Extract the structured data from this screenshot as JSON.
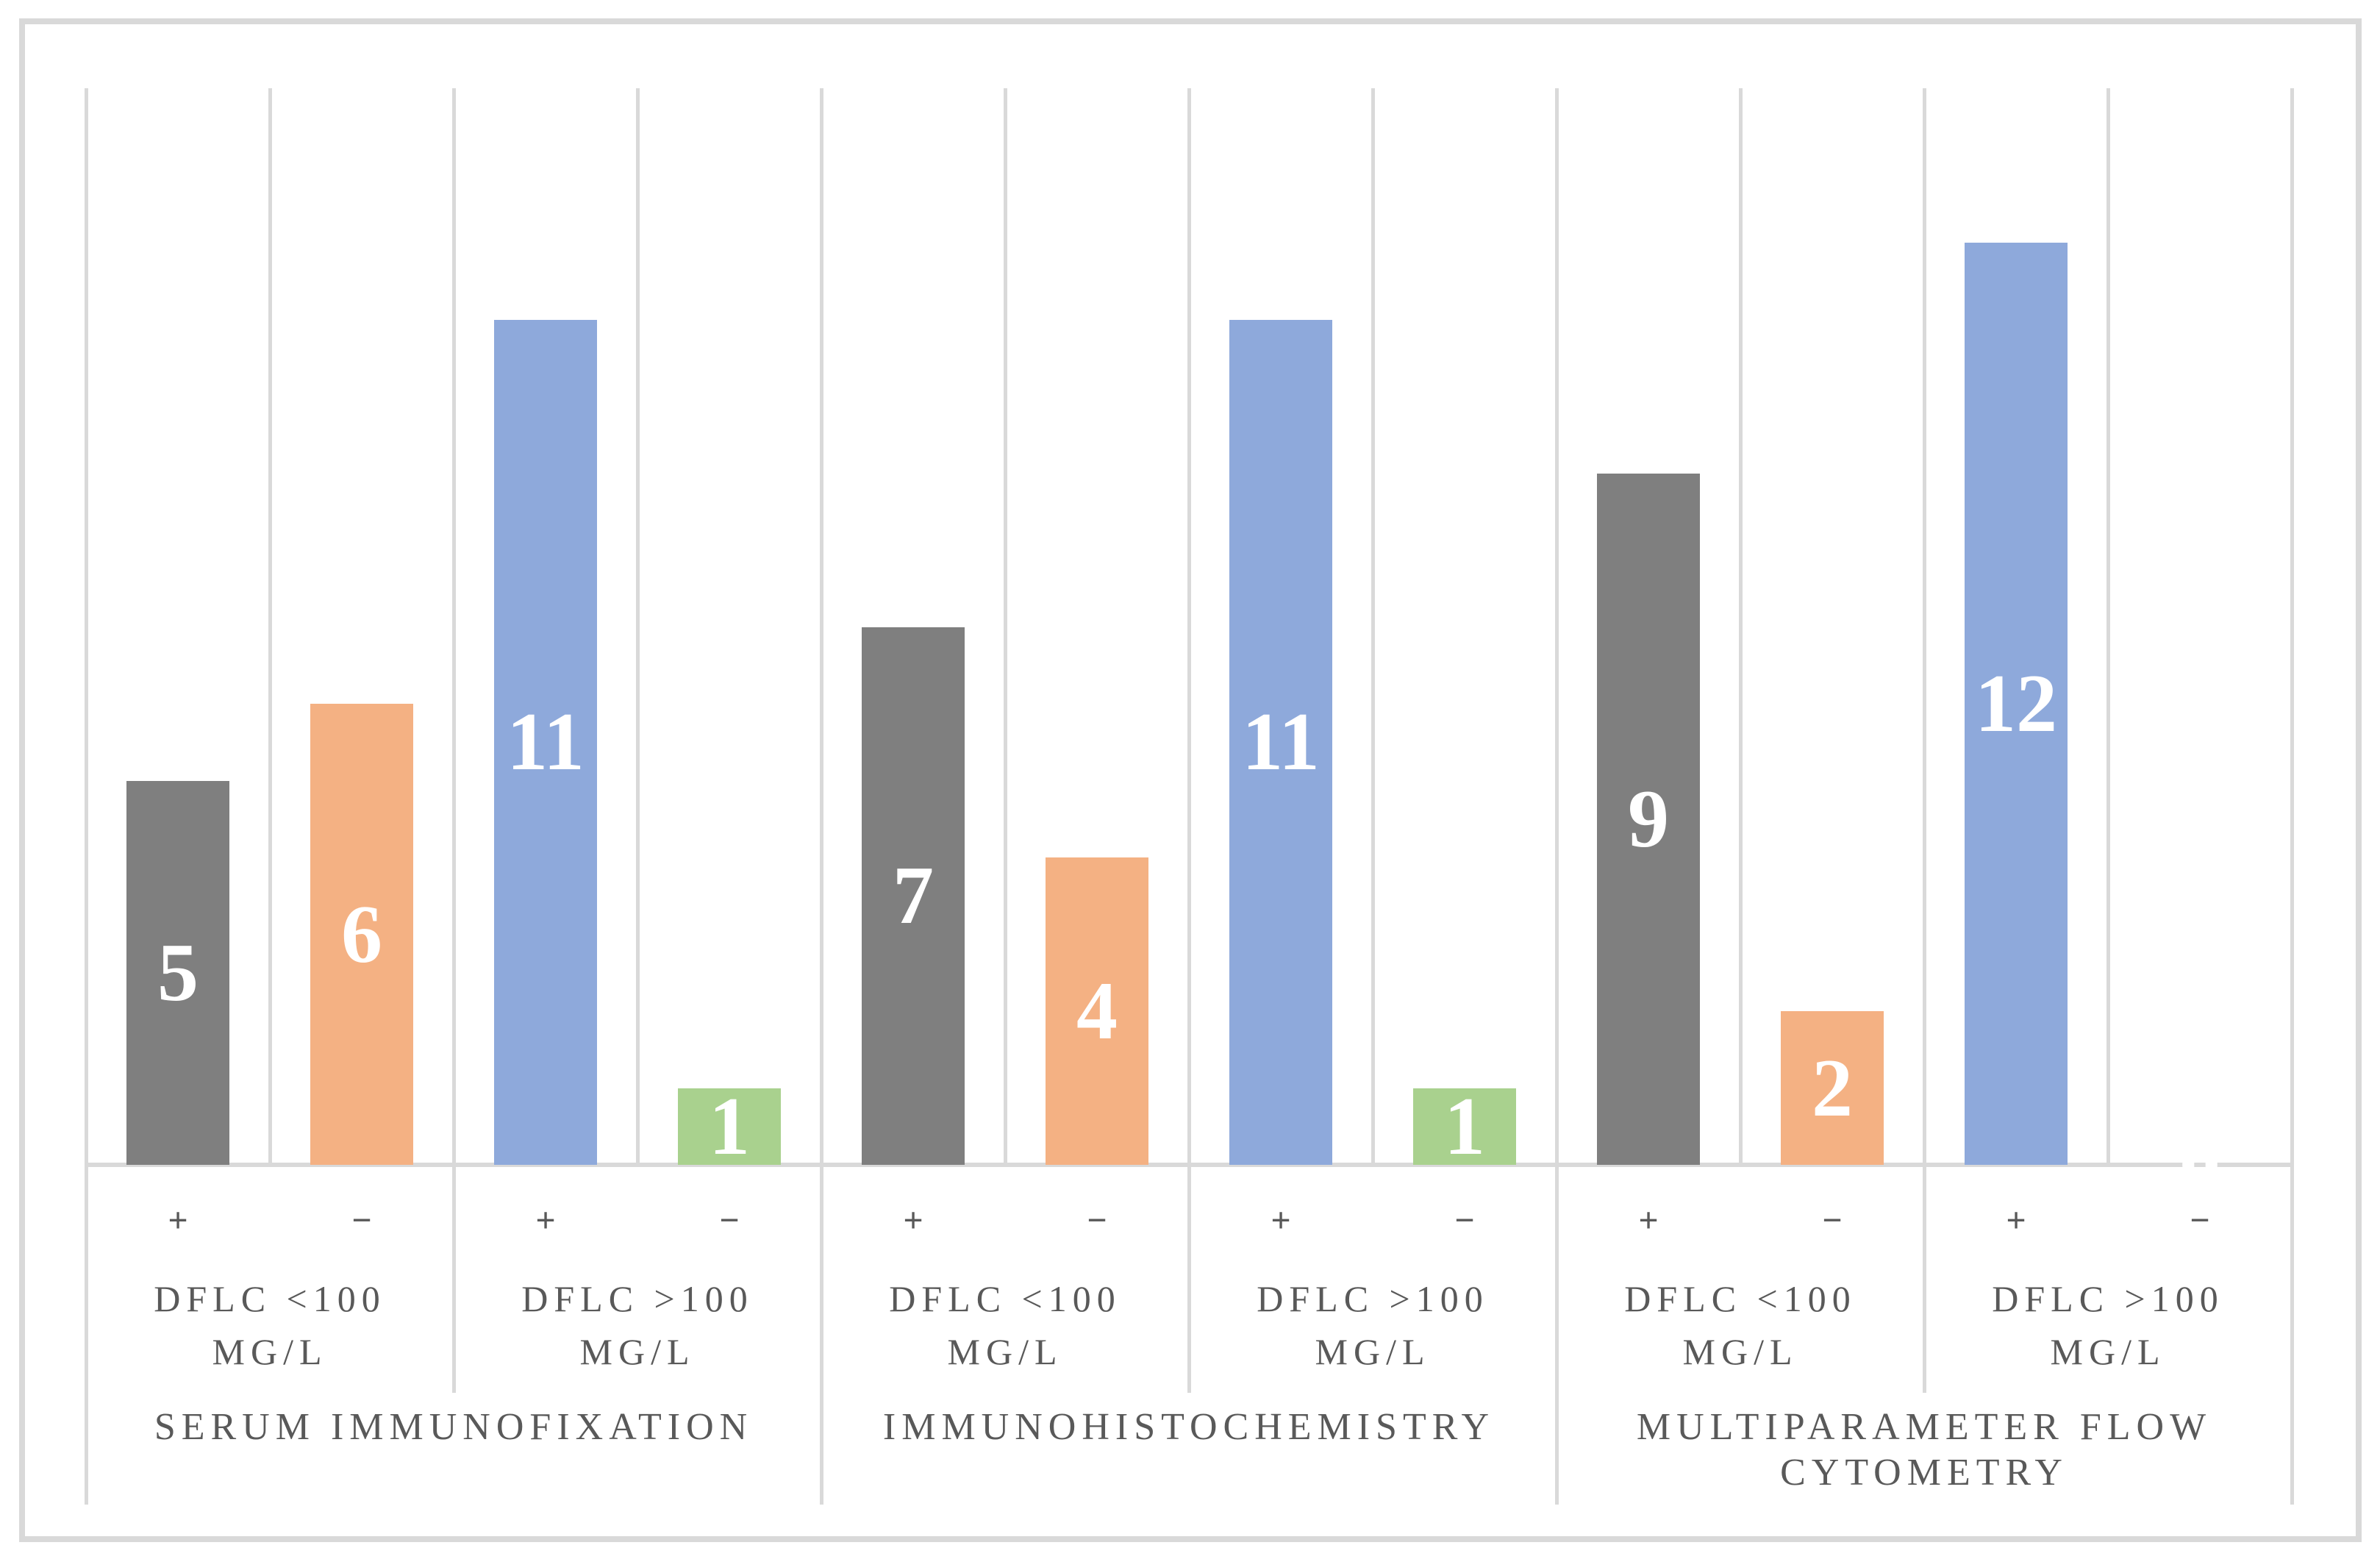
{
  "figure": {
    "background": "#FFFFFF",
    "border_color": "#D9D9D9",
    "gridline_color": "#D9D9D9",
    "axis_text_color": "#595959",
    "data_label_color": "#FFFFFF"
  },
  "colors": {
    "gray": "#7F7F7F",
    "orange": "#F4B183",
    "blue": "#8EA9DB",
    "green": "#A9D18E"
  },
  "chart_data": {
    "type": "bar",
    "title": "",
    "xlabel": "",
    "ylabel": "",
    "ylim": [
      0,
      14
    ],
    "legend_position": "none",
    "gridlines": "vertical category separators only",
    "data_labels": "inside center, white serif",
    "axis_hierarchy": [
      "sign (+ / −)",
      "dFLC range",
      "detection method"
    ],
    "groups": [
      {
        "method": "SERUM IMMUNOFIXATION",
        "method_lines": [
          "SERUM IMMUNOFIXATION"
        ],
        "subgroups": [
          {
            "range": "DFLC <100 MG/L",
            "range_lines": [
              "DFLC <100",
              "MG/L"
            ],
            "points": [
              {
                "sign": "+",
                "value": 5,
                "color_key": "gray"
              },
              {
                "sign": "−",
                "value": 6,
                "color_key": "orange"
              }
            ]
          },
          {
            "range": "DFLC >100 MG/L",
            "range_lines": [
              "DFLC >100",
              "MG/L"
            ],
            "points": [
              {
                "sign": "+",
                "value": 11,
                "color_key": "blue"
              },
              {
                "sign": "−",
                "value": 1,
                "color_key": "green"
              }
            ]
          }
        ]
      },
      {
        "method": "IMMUNOHISTOCHEMISTRY",
        "method_lines": [
          "IMMUNOHISTOCHEMISTRY"
        ],
        "subgroups": [
          {
            "range": "DFLC <100 MG/L",
            "range_lines": [
              "DFLC <100",
              "MG/L"
            ],
            "points": [
              {
                "sign": "+",
                "value": 7,
                "color_key": "gray"
              },
              {
                "sign": "−",
                "value": 4,
                "color_key": "orange"
              }
            ]
          },
          {
            "range": "DFLC >100 MG/L",
            "range_lines": [
              "DFLC >100",
              "MG/L"
            ],
            "points": [
              {
                "sign": "+",
                "value": 11,
                "color_key": "blue"
              },
              {
                "sign": "−",
                "value": 1,
                "color_key": "green"
              }
            ]
          }
        ]
      },
      {
        "method": "MULTIPARAMETER FLOW CYTOMETRY",
        "method_lines": [
          "MULTIPARAMETER FLOW",
          "CYTOMETRY"
        ],
        "subgroups": [
          {
            "range": "DFLC <100 MG/L",
            "range_lines": [
              "DFLC <100",
              "MG/L"
            ],
            "points": [
              {
                "sign": "+",
                "value": 9,
                "color_key": "gray"
              },
              {
                "sign": "−",
                "value": 2,
                "color_key": "orange"
              }
            ]
          },
          {
            "range": "DFLC >100 MG/L",
            "range_lines": [
              "DFLC >100",
              "MG/L"
            ],
            "points": [
              {
                "sign": "+",
                "value": 12,
                "color_key": "blue"
              },
              {
                "sign": "−",
                "value": 0,
                "color_key": "green"
              }
            ]
          }
        ]
      }
    ]
  }
}
